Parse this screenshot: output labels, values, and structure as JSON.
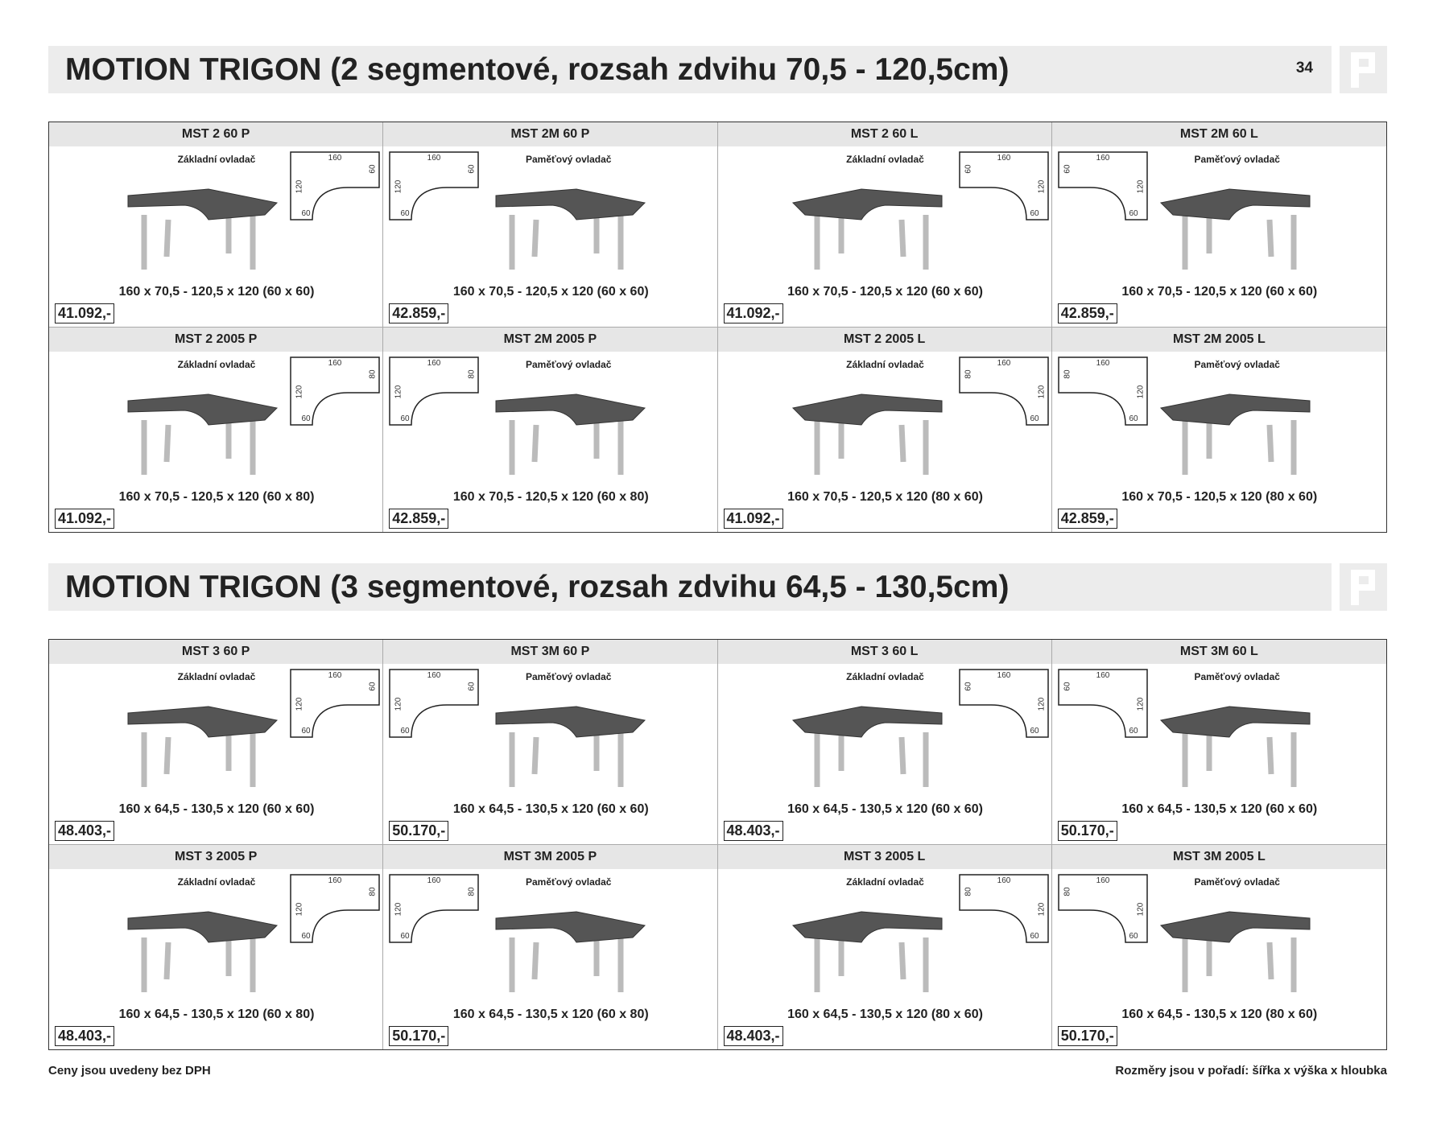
{
  "page_number": "34",
  "sections": [
    {
      "title": "MOTION TRIGON (2 segmentové, rozsah zdvihu 70,5 - 120,5cm)",
      "products": [
        {
          "code": "MST 2 60 P",
          "controller": "Základní ovladač",
          "diagram": {
            "top": "160",
            "side": "60",
            "long": "120",
            "bottom": "60"
          },
          "dimensions": "160 x 70,5 - 120,5 x 120 (60 x 60)",
          "price": "41.092,-"
        },
        {
          "code": "MST 2M 60 P",
          "controller": "Paměťový ovladač",
          "diagram": {
            "top": "160",
            "side": "60",
            "long": "120",
            "bottom": "60"
          },
          "dimensions": "160 x 70,5 - 120,5 x 120 (60 x 60)",
          "price": "42.859,-"
        },
        {
          "code": "MST 2 60 L",
          "controller": "Základní ovladač",
          "diagram": {
            "top": "160",
            "side": "60",
            "long": "120",
            "bottom": "60"
          },
          "dimensions": "160 x 70,5 - 120,5 x 120 (60 x 60)",
          "price": "41.092,-"
        },
        {
          "code": "MST 2M 60 L",
          "controller": "Paměťový ovladač",
          "diagram": {
            "top": "160",
            "side": "60",
            "long": "120",
            "bottom": "60"
          },
          "dimensions": "160 x 70,5 - 120,5 x 120 (60 x 60)",
          "price": "42.859,-"
        },
        {
          "code": "MST 2 2005 P",
          "controller": "Základní ovladač",
          "diagram": {
            "top": "160",
            "side": "80",
            "long": "120",
            "bottom": "60"
          },
          "dimensions": "160 x 70,5 - 120,5 x 120 (60 x 80)",
          "price": "41.092,-"
        },
        {
          "code": "MST 2M 2005 P",
          "controller": "Paměťový ovladač",
          "diagram": {
            "top": "160",
            "side": "80",
            "long": "120",
            "bottom": "60"
          },
          "dimensions": "160 x 70,5 - 120,5 x 120 (60 x 80)",
          "price": "42.859,-"
        },
        {
          "code": "MST 2 2005 L",
          "controller": "Základní ovladač",
          "diagram": {
            "top": "160",
            "side": "80",
            "long": "120",
            "bottom": "60"
          },
          "dimensions": "160 x 70,5 - 120,5 x 120 (80 x 60)",
          "price": "41.092,-"
        },
        {
          "code": "MST 2M 2005 L",
          "controller": "Paměťový ovladač",
          "diagram": {
            "top": "160",
            "side": "80",
            "long": "120",
            "bottom": "60"
          },
          "dimensions": "160 x 70,5 - 120,5 x 120 (80 x 60)",
          "price": "42.859,-"
        }
      ]
    },
    {
      "title": "MOTION TRIGON (3 segmentové, rozsah zdvihu 64,5 - 130,5cm)",
      "products": [
        {
          "code": "MST 3 60 P",
          "controller": "Základní ovladač",
          "diagram": {
            "top": "160",
            "side": "60",
            "long": "120",
            "bottom": "60"
          },
          "dimensions": "160 x 64,5 - 130,5 x 120 (60 x 60)",
          "price": "48.403,-"
        },
        {
          "code": "MST 3M 60 P",
          "controller": "Paměťový ovladač",
          "diagram": {
            "top": "160",
            "side": "60",
            "long": "120",
            "bottom": "60"
          },
          "dimensions": "160 x 64,5 - 130,5 x 120 (60 x 60)",
          "price": "50.170,-"
        },
        {
          "code": "MST 3 60 L",
          "controller": "Základní ovladač",
          "diagram": {
            "top": "160",
            "side": "60",
            "long": "120",
            "bottom": "60"
          },
          "dimensions": "160 x 64,5 - 130,5 x 120 (60 x 60)",
          "price": "48.403,-"
        },
        {
          "code": "MST 3M 60 L",
          "controller": "Paměťový ovladač",
          "diagram": {
            "top": "160",
            "side": "60",
            "long": "120",
            "bottom": "60"
          },
          "dimensions": "160 x 64,5 - 130,5 x 120 (60 x 60)",
          "price": "50.170,-"
        },
        {
          "code": "MST 3 2005 P",
          "controller": "Základní ovladač",
          "diagram": {
            "top": "160",
            "side": "80",
            "long": "120",
            "bottom": "60"
          },
          "dimensions": "160 x 64,5 - 130,5 x 120 (60 x 80)",
          "price": "48.403,-"
        },
        {
          "code": "MST 3M 2005 P",
          "controller": "Paměťový ovladač",
          "diagram": {
            "top": "160",
            "side": "80",
            "long": "120",
            "bottom": "60"
          },
          "dimensions": "160 x 64,5 - 130,5 x 120 (60 x 80)",
          "price": "50.170,-"
        },
        {
          "code": "MST 3 2005 L",
          "controller": "Základní ovladač",
          "diagram": {
            "top": "160",
            "side": "80",
            "long": "120",
            "bottom": "60"
          },
          "dimensions": "160 x 64,5 - 130,5 x 120 (80 x 60)",
          "price": "48.403,-"
        },
        {
          "code": "MST 3M 2005 L",
          "controller": "Paměťový ovladač",
          "diagram": {
            "top": "160",
            "side": "80",
            "long": "120",
            "bottom": "60"
          },
          "dimensions": "160 x 64,5 - 130,5 x 120 (80 x 60)",
          "price": "50.170,-"
        }
      ]
    }
  ],
  "footer": {
    "left": "Ceny jsou uvedeny bez DPH",
    "right": "Rozměry jsou v pořadí:  šířka x výška x hloubka"
  }
}
